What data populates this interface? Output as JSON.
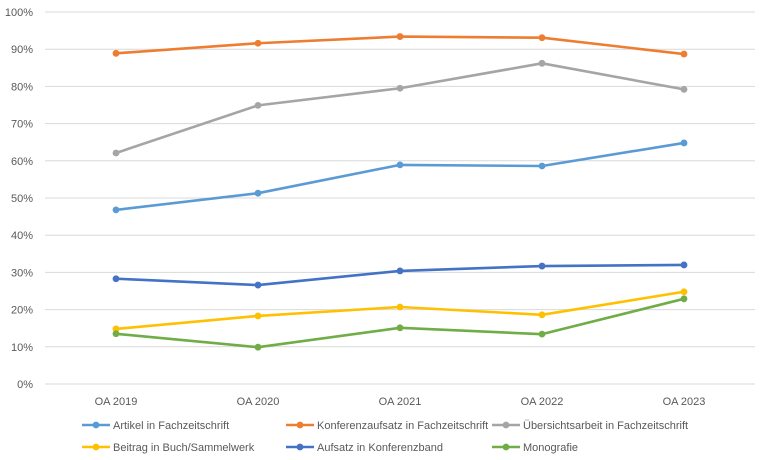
{
  "chart_data": {
    "type": "line",
    "categories": [
      "OA 2019",
      "OA 2020",
      "OA 2021",
      "OA 2022",
      "OA 2023"
    ],
    "ylim": [
      0,
      100
    ],
    "y_ticks": [
      "0%",
      "10%",
      "20%",
      "30%",
      "40%",
      "50%",
      "60%",
      "70%",
      "80%",
      "90%",
      "100%"
    ],
    "grid": true,
    "legend_position": "bottom",
    "series": [
      {
        "name": "Artikel in Fachzeitschrift",
        "color": "#5b9bd5",
        "values": [
          46.8,
          51.3,
          58.9,
          58.6,
          64.8
        ]
      },
      {
        "name": "Konferenzaufsatz in Fachzeitschrift",
        "color": "#ed7d31",
        "values": [
          88.9,
          91.6,
          93.4,
          93.1,
          88.7
        ]
      },
      {
        "name": "Übersichtsarbeit in Fachzeitschrift",
        "color": "#a5a5a5",
        "values": [
          62.1,
          74.9,
          79.5,
          86.2,
          79.2
        ]
      },
      {
        "name": "Beitrag in Buch/Sammelwerk",
        "color": "#ffc000",
        "values": [
          14.8,
          18.3,
          20.7,
          18.6,
          24.8
        ]
      },
      {
        "name": "Aufsatz in Konferenzband",
        "color": "#4472c4",
        "values": [
          28.3,
          26.6,
          30.4,
          31.7,
          32.0
        ]
      },
      {
        "name": "Monografie",
        "color": "#70ad47",
        "values": [
          13.5,
          9.9,
          15.1,
          13.4,
          22.9
        ]
      }
    ]
  }
}
